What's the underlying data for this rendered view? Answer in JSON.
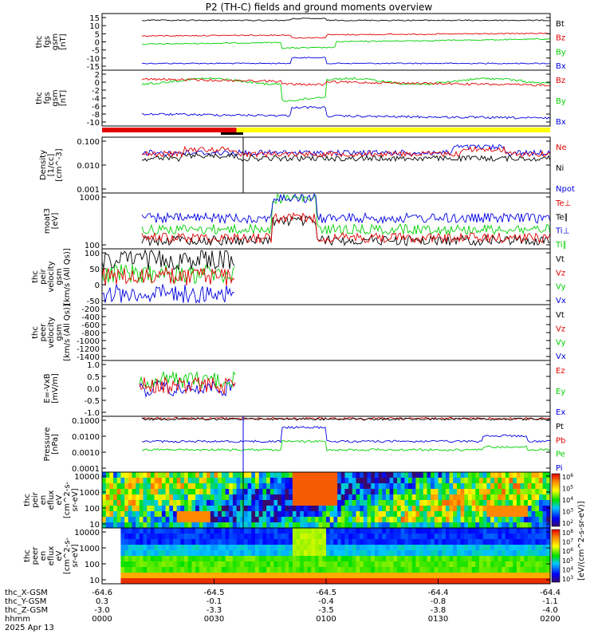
{
  "title": "P2 (TH-C) fields and ground moments overview",
  "colors": {
    "black": "#000000",
    "red": "#e00000",
    "green": "#00d000",
    "blue": "#0000e0",
    "yellow": "#ffff00"
  },
  "bar": {
    "red_fraction": 0.3,
    "marker_fraction": 0.29
  },
  "x_axis": {
    "rows": [
      {
        "label": "thc_X-GSM",
        "values": [
          "-64.6",
          "-64.5",
          "-64.5",
          "-64.4",
          "-64.4"
        ]
      },
      {
        "label": "thc_Y-GSM",
        "values": [
          "0.3",
          "-0.1",
          "-0.4",
          "-0.8",
          "-1.1"
        ]
      },
      {
        "label": "thc_Z-GSM",
        "values": [
          "-3.0",
          "-3.3",
          "-3.5",
          "-3.8",
          "-4.0"
        ]
      },
      {
        "label": "hhmm",
        "values": [
          "0000",
          "0030",
          "0100",
          "0130",
          "0200"
        ]
      }
    ],
    "date": "2025 Apr 13"
  },
  "chart_data": [
    {
      "type": "line",
      "ylabel": [
        "thc",
        "fgs",
        "gsm",
        "[nT]"
      ],
      "yticks": [
        "15",
        "10",
        "5",
        "0",
        "-5",
        "-10",
        "-15"
      ],
      "ylim": [
        -16,
        16
      ],
      "series": [
        {
          "name": "Bt",
          "color": "black",
          "baseline": 13
        },
        {
          "name": "Bz",
          "color": "red",
          "baseline": 3
        },
        {
          "name": "By",
          "color": "green",
          "baseline": -3
        },
        {
          "name": "Bx",
          "color": "blue",
          "baseline": -12
        }
      ]
    },
    {
      "type": "line",
      "ylabel": [
        "thc",
        "fgs",
        "gsm",
        "[nT]"
      ],
      "yticks": [
        "2",
        "0",
        "-2",
        "-4",
        "-6",
        "-8",
        "-10"
      ],
      "ylim": [
        -11,
        3
      ],
      "series": [
        {
          "name": "Bz",
          "color": "red",
          "baseline": 1
        },
        {
          "name": "By",
          "color": "green",
          "baseline": 0
        },
        {
          "name": "Bx",
          "color": "blue",
          "baseline": -9
        }
      ]
    },
    {
      "type": "line",
      "ylabel": [
        "Density",
        "[1/cc]",
        "[cm^-3]"
      ],
      "yticks": [
        "0.100",
        "0.010",
        "0.001"
      ],
      "log": true,
      "series": [
        {
          "name": "Ne",
          "color": "red"
        },
        {
          "name": "Ni",
          "color": "black"
        },
        {
          "name": "Npot",
          "color": "blue"
        }
      ]
    },
    {
      "type": "line",
      "ylabel": [
        "moat3",
        "[eV]"
      ],
      "yticks": [
        "1000",
        "100"
      ],
      "log": true,
      "series": [
        {
          "name": "Te⊥",
          "color": "red"
        },
        {
          "name": "Te∥",
          "color": "black"
        },
        {
          "name": "Ti⊥",
          "color": "blue"
        },
        {
          "name": "Ti∥",
          "color": "green"
        }
      ]
    },
    {
      "type": "line",
      "ylabel": [
        "thc",
        "peir",
        "velocity",
        "gsm",
        "[km/s (All Qs)]"
      ],
      "yticks": [
        "100",
        "50",
        "0",
        "-50"
      ],
      "ylim": [
        -75,
        115
      ],
      "series": [
        {
          "name": "Vt",
          "color": "black"
        },
        {
          "name": "Vz",
          "color": "red"
        },
        {
          "name": "Vy",
          "color": "green"
        },
        {
          "name": "Vx",
          "color": "blue"
        }
      ]
    },
    {
      "type": "line",
      "ylabel": [
        "thc",
        "peer",
        "velocity",
        "gsm",
        "[km/s (All Qs)]"
      ],
      "yticks": [
        "-200",
        "-400",
        "-600",
        "-800",
        "-1000",
        "-1200",
        "-1400"
      ],
      "ylim": [
        -1500,
        0
      ],
      "series": [
        {
          "name": "Vt",
          "color": "black"
        },
        {
          "name": "Vz",
          "color": "red"
        },
        {
          "name": "Vy",
          "color": "green"
        },
        {
          "name": "Vx",
          "color": "blue"
        }
      ]
    },
    {
      "type": "line",
      "ylabel": [
        "E=-VxB",
        "[mV/m]"
      ],
      "yticks": [
        "1.0",
        "0.5",
        "0.0",
        "-0.5",
        "-1.0"
      ],
      "ylim": [
        -1.1,
        1.1
      ],
      "series": [
        {
          "name": "Ez",
          "color": "red"
        },
        {
          "name": "Ey",
          "color": "green"
        },
        {
          "name": "Ex",
          "color": "blue"
        }
      ]
    },
    {
      "type": "line",
      "ylabel": [
        "Pressure",
        "[nPa]"
      ],
      "yticks": [
        "0.1000",
        "0.0100",
        "0.0010",
        "0.0001"
      ],
      "log": true,
      "series": [
        {
          "name": "Pt",
          "color": "black"
        },
        {
          "name": "Pb",
          "color": "red"
        },
        {
          "name": "Pe",
          "color": "green"
        },
        {
          "name": "Pi",
          "color": "blue"
        }
      ]
    },
    {
      "type": "heatmap",
      "ylabel": [
        "thc",
        "peir",
        "en",
        "eflux",
        "eV",
        "[cm^2-s-",
        "sr-eV]"
      ],
      "yticks": [
        "10000",
        "1000",
        "100",
        "10"
      ],
      "log": true,
      "colorbar": {
        "label": "[eV/(cm^2-s-sr-eV)] (All Qs)",
        "ticks": [
          "10^6",
          "10^5",
          "10^4",
          "10^3",
          "10^2"
        ]
      }
    },
    {
      "type": "heatmap",
      "ylabel": [
        "thc",
        "peer",
        "en",
        "eflux",
        "eV",
        "[cm^2-s-",
        "sr-eV]"
      ],
      "yticks": [
        "10000",
        "1000",
        "100",
        "10"
      ],
      "log": true,
      "colorbar": {
        "label": "[eV/(cm^2-s-sr-eV)]",
        "ticks": [
          "10^8",
          "10^7",
          "10^6",
          "10^5",
          "10^4",
          "10^3"
        ]
      }
    }
  ]
}
